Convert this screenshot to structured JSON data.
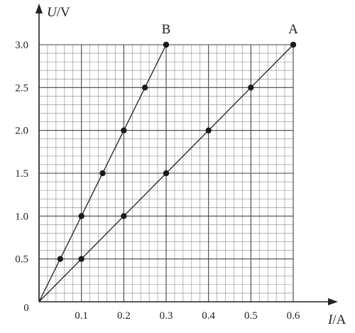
{
  "chart_data": {
    "type": "line",
    "title": "",
    "xlabel": {
      "symbol": "I",
      "unit": "/A"
    },
    "ylabel": {
      "symbol": "U",
      "unit": "/V"
    },
    "origin_label": "0",
    "xlim": [
      0,
      0.6
    ],
    "ylim": [
      0,
      3.0
    ],
    "x_ticks": [
      "0.1",
      "0.2",
      "0.3",
      "0.4",
      "0.5",
      "0.6"
    ],
    "y_ticks": [
      "0.5",
      "1.0",
      "1.5",
      "2.0",
      "2.5",
      "3.0"
    ],
    "grid": true,
    "grid_minor_step": {
      "x": 0.02,
      "y": 0.1
    },
    "legend": "none",
    "series": [
      {
        "name": "A",
        "points": [
          {
            "x": 0,
            "y": 0
          },
          {
            "x": 0.1,
            "y": 0.5
          },
          {
            "x": 0.2,
            "y": 1.0
          },
          {
            "x": 0.3,
            "y": 1.5
          },
          {
            "x": 0.4,
            "y": 2.0
          },
          {
            "x": 0.5,
            "y": 2.5
          },
          {
            "x": 0.6,
            "y": 3.0
          }
        ]
      },
      {
        "name": "B",
        "points": [
          {
            "x": 0,
            "y": 0
          },
          {
            "x": 0.05,
            "y": 0.5
          },
          {
            "x": 0.1,
            "y": 1.0
          },
          {
            "x": 0.15,
            "y": 1.5
          },
          {
            "x": 0.2,
            "y": 2.0
          },
          {
            "x": 0.25,
            "y": 2.5
          },
          {
            "x": 0.3,
            "y": 3.0
          }
        ]
      }
    ]
  }
}
